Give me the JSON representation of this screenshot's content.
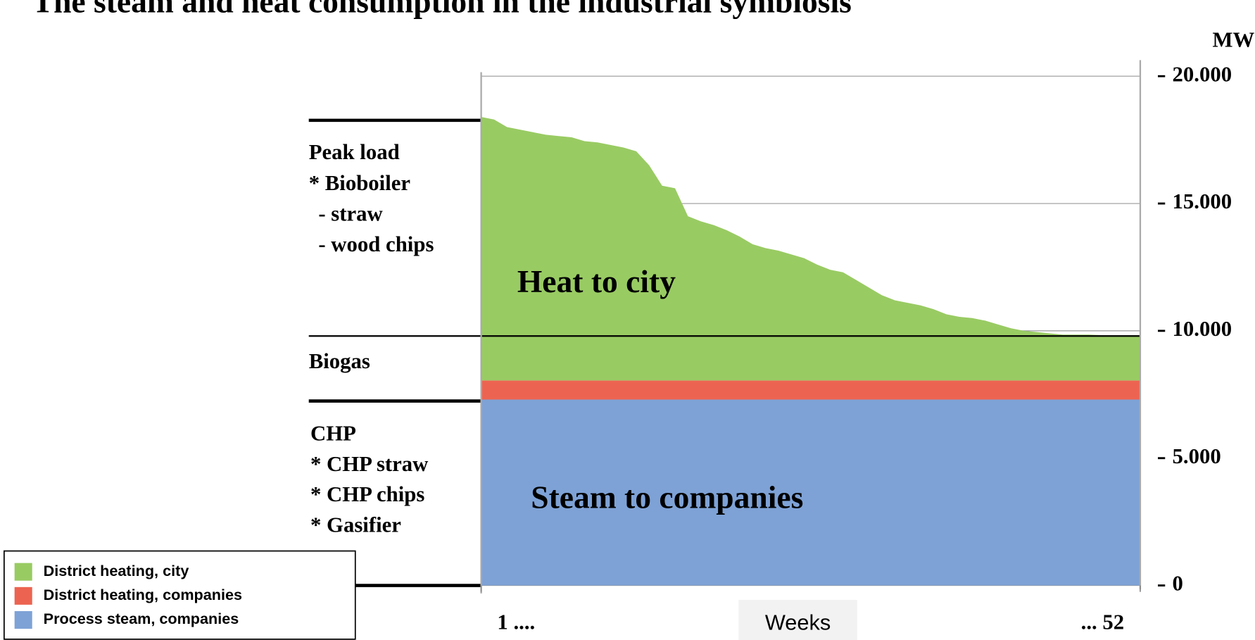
{
  "chart_data": {
    "type": "stacked_area",
    "title": "The steam and heat consumption in the industrial symbiosis",
    "y_label": "MWh",
    "x_label": "Weeks",
    "x": [
      1,
      2,
      3,
      4,
      5,
      6,
      7,
      8,
      9,
      10,
      11,
      12,
      13,
      14,
      15,
      16,
      17,
      18,
      19,
      20,
      21,
      22,
      23,
      24,
      25,
      26,
      27,
      28,
      29,
      30,
      31,
      32,
      33,
      34,
      35,
      36,
      37,
      38,
      39,
      40,
      41,
      42,
      43,
      44,
      45,
      46,
      47,
      48,
      49,
      50,
      51,
      52
    ],
    "xlim": [
      1,
      52
    ],
    "xticks": [
      {
        "value": 1,
        "label": "1 ...."
      },
      {
        "value": 52,
        "label": "... 52"
      }
    ],
    "ylim": [
      0,
      20000
    ],
    "yticks": [
      0,
      {
        "value": 5000,
        "label": "5.000"
      },
      {
        "value": 10000,
        "label": "10.000"
      },
      {
        "value": 15000,
        "label": "15.000"
      },
      {
        "value": 20000,
        "label": "20.000"
      }
    ],
    "grid": true,
    "legend": "bottom-left",
    "series": [
      {
        "name": "District heating, city",
        "color": "#99cb63",
        "values": [
          10350,
          10250,
          9950,
          9850,
          9750,
          9650,
          9600,
          9550,
          9400,
          9350,
          9250,
          9150,
          9000,
          8450,
          7650,
          7550,
          6450,
          6250,
          6100,
          5900,
          5650,
          5350,
          5200,
          5100,
          4950,
          4800,
          4550,
          4350,
          4250,
          3950,
          3650,
          3350,
          3150,
          3050,
          2950,
          2800,
          2600,
          2500,
          2450,
          2350,
          2200,
          2050,
          1950,
          1900,
          1850,
          1800,
          1800,
          1800,
          1780,
          1780,
          1780,
          1780
        ]
      },
      {
        "name": "District heating, companies",
        "color": "#ec6451",
        "values": [
          750,
          750,
          750,
          750,
          750,
          750,
          750,
          750,
          750,
          750,
          750,
          750,
          750,
          750,
          750,
          750,
          750,
          750,
          750,
          750,
          750,
          750,
          750,
          750,
          750,
          750,
          750,
          750,
          750,
          750,
          750,
          750,
          750,
          750,
          750,
          750,
          750,
          750,
          750,
          750,
          750,
          750,
          750,
          750,
          750,
          750,
          750,
          750,
          750,
          750,
          750,
          750
        ]
      },
      {
        "name": "Process steam, companies",
        "color": "#7ea2d6",
        "values": [
          7300,
          7300,
          7300,
          7300,
          7300,
          7300,
          7300,
          7300,
          7300,
          7300,
          7300,
          7300,
          7300,
          7300,
          7300,
          7300,
          7300,
          7300,
          7300,
          7300,
          7300,
          7300,
          7300,
          7300,
          7300,
          7300,
          7300,
          7300,
          7300,
          7300,
          7300,
          7300,
          7300,
          7300,
          7300,
          7300,
          7300,
          7300,
          7300,
          7300,
          7300,
          7300,
          7300,
          7300,
          7300,
          7300,
          7300,
          7300,
          7300,
          7300,
          7300,
          7300
        ]
      }
    ],
    "annotations": [
      "Peak load",
      "* Bioboiler",
      "- straw",
      "- wood chips",
      "Biogas",
      "CHP",
      "* CHP straw",
      "* CHP chips",
      "* Gasifier",
      "Heat to city",
      "Steam to companies"
    ]
  }
}
